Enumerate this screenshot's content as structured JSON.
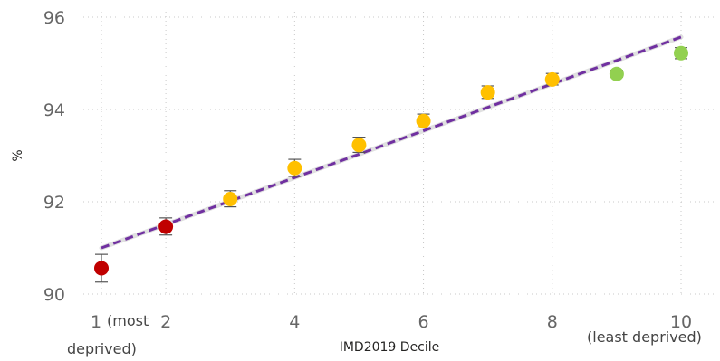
{
  "chart_data": {
    "type": "scatter",
    "title": "",
    "xlabel": "IMD2019 Decile",
    "ylabel": "%",
    "xlim": [
      1,
      10
    ],
    "ylim": [
      90,
      96
    ],
    "x_ticks": [
      {
        "value": 1,
        "label": "1",
        "note": "(most"
      },
      {
        "value": 2,
        "label": "2"
      },
      {
        "value": 4,
        "label": "4"
      },
      {
        "value": 6,
        "label": "6"
      },
      {
        "value": 8,
        "label": "8"
      },
      {
        "value": 10,
        "label": "10"
      }
    ],
    "x_notes": {
      "first_line2": "deprived)",
      "last": "(least deprived)"
    },
    "y_ticks": [
      90,
      92,
      94,
      96
    ],
    "grid": true,
    "points": [
      {
        "x": 1,
        "y": 90.56,
        "lower": 90.26,
        "upper": 90.86,
        "color": "#c00000"
      },
      {
        "x": 2,
        "y": 91.46,
        "lower": 91.28,
        "upper": 91.65,
        "color": "#c00000"
      },
      {
        "x": 3,
        "y": 92.06,
        "lower": 91.89,
        "upper": 92.24,
        "color": "#ffc000"
      },
      {
        "x": 4,
        "y": 92.73,
        "lower": 92.55,
        "upper": 92.92,
        "color": "#ffc000"
      },
      {
        "x": 5,
        "y": 93.23,
        "lower": 93.07,
        "upper": 93.4,
        "color": "#ffc000"
      },
      {
        "x": 6,
        "y": 93.75,
        "lower": 93.6,
        "upper": 93.9,
        "color": "#ffc000"
      },
      {
        "x": 7,
        "y": 94.37,
        "lower": 94.24,
        "upper": 94.51,
        "color": "#ffc000"
      },
      {
        "x": 8,
        "y": 94.65,
        "lower": 94.53,
        "upper": 94.78,
        "color": "#ffc000"
      },
      {
        "x": 9,
        "y": 94.77,
        "lower": 94.7,
        "upper": 94.85,
        "color": "#92d050"
      },
      {
        "x": 10,
        "y": 95.22,
        "lower": 95.1,
        "upper": 95.34,
        "color": "#92d050"
      }
    ],
    "trendline": {
      "x1": 1,
      "y1": 91.0,
      "x2": 10,
      "y2": 95.57,
      "color": "#7030a0"
    }
  }
}
